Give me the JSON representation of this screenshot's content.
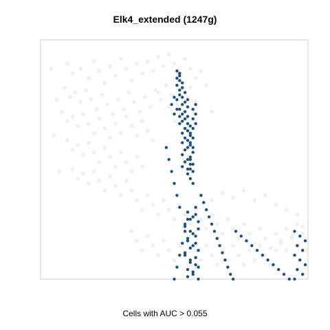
{
  "chart_data": {
    "type": "scatter",
    "title": "Elk4_extended (1247g)",
    "xlabel": "Cells with AUC > 0.055",
    "ylabel": "",
    "xlim": [
      0,
      100
    ],
    "ylim": [
      0,
      100
    ],
    "grid": false,
    "colors": {
      "background_cells": "#d3d3d3",
      "highlighted_cells": "#1a4f80",
      "frame": "#cccccc"
    },
    "series": [
      {
        "highlighted": false,
        "points": [
          [
            10,
            90
          ],
          [
            12,
            86
          ],
          [
            15,
            88
          ],
          [
            18,
            84
          ],
          [
            20,
            91
          ],
          [
            22,
            87
          ],
          [
            24,
            82
          ],
          [
            26,
            89
          ],
          [
            28,
            85
          ],
          [
            30,
            92
          ],
          [
            32,
            88
          ],
          [
            34,
            83
          ],
          [
            36,
            90
          ],
          [
            38,
            86
          ],
          [
            40,
            91
          ],
          [
            42,
            87
          ],
          [
            44,
            93
          ],
          [
            46,
            89
          ],
          [
            48,
            94
          ],
          [
            50,
            90
          ],
          [
            52,
            86
          ],
          [
            54,
            92
          ],
          [
            56,
            88
          ],
          [
            58,
            84
          ],
          [
            9,
            80
          ],
          [
            11,
            76
          ],
          [
            13,
            78
          ],
          [
            15,
            74
          ],
          [
            17,
            79
          ],
          [
            19,
            75
          ],
          [
            21,
            71
          ],
          [
            23,
            77
          ],
          [
            25,
            73
          ],
          [
            27,
            69
          ],
          [
            29,
            75
          ],
          [
            31,
            71
          ],
          [
            33,
            78
          ],
          [
            35,
            74
          ],
          [
            37,
            70
          ],
          [
            39,
            76
          ],
          [
            41,
            72
          ],
          [
            43,
            79
          ],
          [
            45,
            75
          ],
          [
            47,
            81
          ],
          [
            49,
            77
          ],
          [
            51,
            73
          ],
          [
            53,
            80
          ],
          [
            55,
            76
          ],
          [
            8,
            70
          ],
          [
            10,
            66
          ],
          [
            12,
            68
          ],
          [
            14,
            64
          ],
          [
            16,
            69
          ],
          [
            18,
            65
          ],
          [
            20,
            61
          ],
          [
            22,
            67
          ],
          [
            24,
            63
          ],
          [
            26,
            59
          ],
          [
            28,
            65
          ],
          [
            30,
            61
          ],
          [
            32,
            68
          ],
          [
            34,
            64
          ],
          [
            36,
            60
          ],
          [
            38,
            66
          ],
          [
            40,
            62
          ],
          [
            42,
            58
          ],
          [
            10,
            58
          ],
          [
            12,
            54
          ],
          [
            14,
            56
          ],
          [
            16,
            52
          ],
          [
            18,
            57
          ],
          [
            20,
            53
          ],
          [
            22,
            49
          ],
          [
            24,
            55
          ],
          [
            26,
            51
          ],
          [
            28,
            47
          ],
          [
            30,
            53
          ],
          [
            32,
            49
          ],
          [
            34,
            45
          ],
          [
            36,
            51
          ],
          [
            38,
            47
          ],
          [
            12,
            46
          ],
          [
            14,
            42
          ],
          [
            16,
            44
          ],
          [
            18,
            40
          ],
          [
            20,
            45
          ],
          [
            22,
            41
          ],
          [
            24,
            37
          ],
          [
            26,
            43
          ],
          [
            28,
            39
          ],
          [
            30,
            35
          ],
          [
            32,
            41
          ],
          [
            34,
            37
          ],
          [
            36,
            33
          ],
          [
            38,
            29
          ],
          [
            40,
            35
          ],
          [
            42,
            31
          ],
          [
            44,
            27
          ],
          [
            46,
            33
          ],
          [
            48,
            29
          ],
          [
            50,
            25
          ],
          [
            52,
            31
          ],
          [
            54,
            27
          ],
          [
            56,
            23
          ],
          [
            58,
            29
          ],
          [
            60,
            25
          ],
          [
            62,
            21
          ],
          [
            64,
            27
          ],
          [
            66,
            23
          ],
          [
            68,
            19
          ],
          [
            70,
            25
          ],
          [
            72,
            21
          ],
          [
            74,
            17
          ],
          [
            76,
            23
          ],
          [
            78,
            19
          ],
          [
            80,
            15
          ],
          [
            82,
            21
          ],
          [
            84,
            17
          ],
          [
            86,
            13
          ],
          [
            88,
            19
          ],
          [
            90,
            15
          ],
          [
            92,
            21
          ],
          [
            94,
            17
          ],
          [
            96,
            23
          ],
          [
            98,
            19
          ],
          [
            34,
            20
          ],
          [
            36,
            16
          ],
          [
            38,
            12
          ],
          [
            40,
            18
          ],
          [
            42,
            14
          ],
          [
            44,
            10
          ],
          [
            46,
            16
          ],
          [
            48,
            12
          ],
          [
            50,
            8
          ],
          [
            52,
            14
          ],
          [
            54,
            10
          ],
          [
            56,
            6
          ],
          [
            58,
            12
          ],
          [
            60,
            8
          ],
          [
            62,
            14
          ],
          [
            64,
            10
          ],
          [
            66,
            6
          ],
          [
            68,
            12
          ],
          [
            70,
            8
          ],
          [
            72,
            14
          ],
          [
            74,
            10
          ],
          [
            76,
            6
          ],
          [
            78,
            12
          ],
          [
            80,
            8
          ],
          [
            82,
            14
          ],
          [
            84,
            10
          ],
          [
            86,
            6
          ],
          [
            88,
            12
          ],
          [
            90,
            16
          ],
          [
            92,
            12
          ],
          [
            94,
            18
          ],
          [
            96,
            14
          ],
          [
            98,
            22
          ],
          [
            60,
            35
          ],
          [
            64,
            33
          ],
          [
            68,
            36
          ],
          [
            72,
            34
          ],
          [
            76,
            37
          ],
          [
            80,
            33
          ],
          [
            84,
            35
          ],
          [
            88,
            31
          ],
          [
            92,
            29
          ],
          [
            96,
            27
          ],
          [
            4,
            88
          ],
          [
            5,
            60
          ],
          [
            6,
            75
          ],
          [
            7,
            45
          ],
          [
            44,
            78
          ],
          [
            48,
            72
          ],
          [
            50,
            66
          ],
          [
            56,
            80
          ],
          [
            58,
            74
          ],
          [
            60,
            87
          ],
          [
            62,
            81
          ],
          [
            64,
            70
          ]
        ]
      },
      {
        "highlighted": true,
        "points": [
          [
            51,
            87
          ],
          [
            52,
            86
          ],
          [
            52,
            85
          ],
          [
            51,
            84
          ],
          [
            52,
            83
          ],
          [
            53,
            82
          ],
          [
            51,
            81
          ],
          [
            53,
            80
          ],
          [
            52,
            79
          ],
          [
            54,
            78
          ],
          [
            52,
            77
          ],
          [
            53,
            76
          ],
          [
            55,
            75
          ],
          [
            51,
            75
          ],
          [
            54,
            74
          ],
          [
            53,
            73
          ],
          [
            55,
            72
          ],
          [
            52,
            71
          ],
          [
            54,
            70
          ],
          [
            53,
            69
          ],
          [
            55,
            68
          ],
          [
            54,
            67
          ],
          [
            53,
            66
          ],
          [
            55,
            65
          ],
          [
            52,
            65
          ],
          [
            56,
            64
          ],
          [
            54,
            63
          ],
          [
            55,
            62
          ],
          [
            53,
            61
          ],
          [
            56,
            60
          ],
          [
            54,
            59
          ],
          [
            55,
            58
          ],
          [
            53,
            57
          ],
          [
            56,
            56
          ],
          [
            55,
            55
          ],
          [
            54,
            54
          ],
          [
            57,
            53
          ],
          [
            53,
            52
          ],
          [
            56,
            51
          ],
          [
            55,
            50
          ],
          [
            54,
            49
          ],
          [
            56,
            48
          ],
          [
            53,
            47
          ],
          [
            55,
            46
          ],
          [
            57,
            45
          ],
          [
            50,
            76
          ],
          [
            49,
            73
          ],
          [
            51,
            71
          ],
          [
            50,
            69
          ],
          [
            52,
            68
          ],
          [
            58,
            73
          ],
          [
            57,
            71
          ],
          [
            58,
            69
          ],
          [
            57,
            67
          ],
          [
            58,
            65
          ],
          [
            57,
            63
          ],
          [
            56,
            61
          ],
          [
            57,
            59
          ],
          [
            56,
            57
          ],
          [
            57,
            55
          ],
          [
            56,
            50
          ],
          [
            57,
            48
          ],
          [
            56,
            46
          ],
          [
            55,
            44
          ],
          [
            56,
            42
          ],
          [
            57,
            40
          ],
          [
            58,
            30
          ],
          [
            55,
            28
          ],
          [
            57,
            26
          ],
          [
            59,
            24
          ],
          [
            54,
            22
          ],
          [
            56,
            20
          ],
          [
            58,
            18
          ],
          [
            55,
            16
          ],
          [
            57,
            14
          ],
          [
            59,
            12
          ],
          [
            54,
            10
          ],
          [
            56,
            8
          ],
          [
            58,
            6
          ],
          [
            55,
            4
          ],
          [
            57,
            2
          ],
          [
            59,
            0
          ],
          [
            55,
            1
          ],
          [
            57,
            3
          ],
          [
            59,
            5
          ],
          [
            56,
            7
          ],
          [
            58,
            9
          ],
          [
            54,
            11
          ],
          [
            56,
            13
          ],
          [
            58,
            15
          ],
          [
            55,
            17
          ],
          [
            57,
            19
          ],
          [
            59,
            21
          ],
          [
            54,
            23
          ],
          [
            56,
            25
          ],
          [
            58,
            27
          ],
          [
            60,
            35
          ],
          [
            61,
            32
          ],
          [
            62,
            29
          ],
          [
            63,
            26
          ],
          [
            64,
            23
          ],
          [
            65,
            20
          ],
          [
            66,
            17
          ],
          [
            67,
            14
          ],
          [
            68,
            11
          ],
          [
            69,
            8
          ],
          [
            70,
            5
          ],
          [
            71,
            2
          ],
          [
            72,
            0
          ],
          [
            73,
            20
          ],
          [
            75,
            18
          ],
          [
            77,
            16
          ],
          [
            79,
            14
          ],
          [
            81,
            12
          ],
          [
            83,
            10
          ],
          [
            85,
            8
          ],
          [
            87,
            6
          ],
          [
            89,
            4
          ],
          [
            91,
            2
          ],
          [
            93,
            0
          ],
          [
            95,
            20
          ],
          [
            97,
            18
          ],
          [
            99,
            16
          ],
          [
            96,
            14
          ],
          [
            98,
            12
          ],
          [
            95,
            10
          ],
          [
            97,
            8
          ],
          [
            99,
            6
          ],
          [
            96,
            4
          ],
          [
            98,
            2
          ],
          [
            95,
            0
          ],
          [
            47,
            55
          ],
          [
            48,
            50
          ],
          [
            49,
            45
          ],
          [
            50,
            40
          ],
          [
            51,
            35
          ],
          [
            52,
            30
          ],
          [
            55,
            25
          ],
          [
            54,
            20
          ],
          [
            53,
            15
          ],
          [
            52,
            10
          ],
          [
            51,
            5
          ],
          [
            50,
            0
          ]
        ]
      }
    ]
  }
}
